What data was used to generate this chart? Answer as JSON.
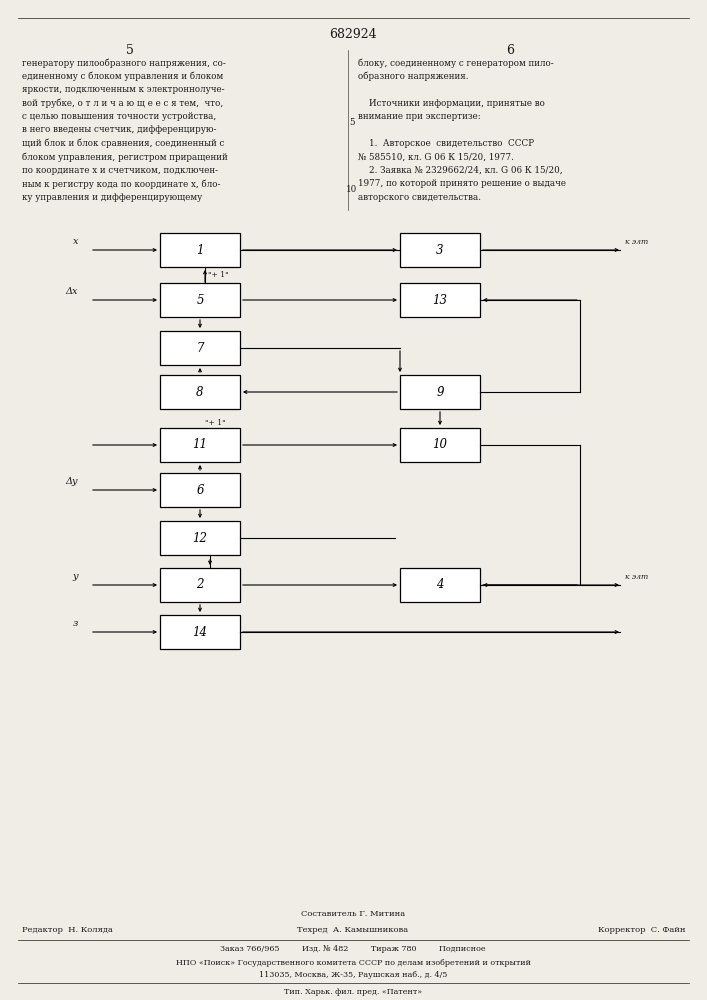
{
  "patent_number": "682924",
  "bg_color": "#f0ede6",
  "text_color": "#1a1a1a",
  "left_column_text": [
    "генератору пилообразного напряжения, со-",
    "единенному с блоком управления и блоком",
    "яркости, подключенным к электроннолуче-",
    "вой трубке, о т л и ч а ю щ е е с я тем,  что,",
    "с целью повышения точности устройства,",
    "в него введены счетчик, дифференцирую-",
    "щий блок и блок сравнения, соединенный с",
    "блоком управления, регистром приращений",
    "по координате x и счетчиком, подключен-",
    "ным к регистру кода по координате x, бло-",
    "ку управления и дифференцирующему"
  ],
  "right_column_text": [
    "блоку, соединенному с генератором пило-",
    "образного напряжения.",
    "",
    "    Источники информации, принятые во",
    "внимание при экспертизе:",
    "",
    "    1.  Авторское  свидетельство  СССР",
    "№ 585510, кл. G 06 К 15/20, 1977.",
    "    2. Заявка № 2329662/24, кл. G 06 К 15/20,",
    "1977, по которой принято решение о выдаче",
    "авторского свидетельства."
  ],
  "footer_composer": "Составитель Г. Митина",
  "footer_editor": "Редактор  Н. Коляда",
  "footer_techred": "Техред  А. Камышникова",
  "footer_corrector": "Корректор  С. Файн",
  "footer_line1": "Заказ 766/965         Изд. № 482         Тираж 780         Подписное",
  "footer_line2": "НПО «Поиск» Государственного комитета СССР по делам изобретений и открытий",
  "footer_line3": "113035, Москва, Ж-35, Раушская наб., д. 4/5",
  "footer_line4": "Тип. Харьк. фил. пред. «Патент»"
}
